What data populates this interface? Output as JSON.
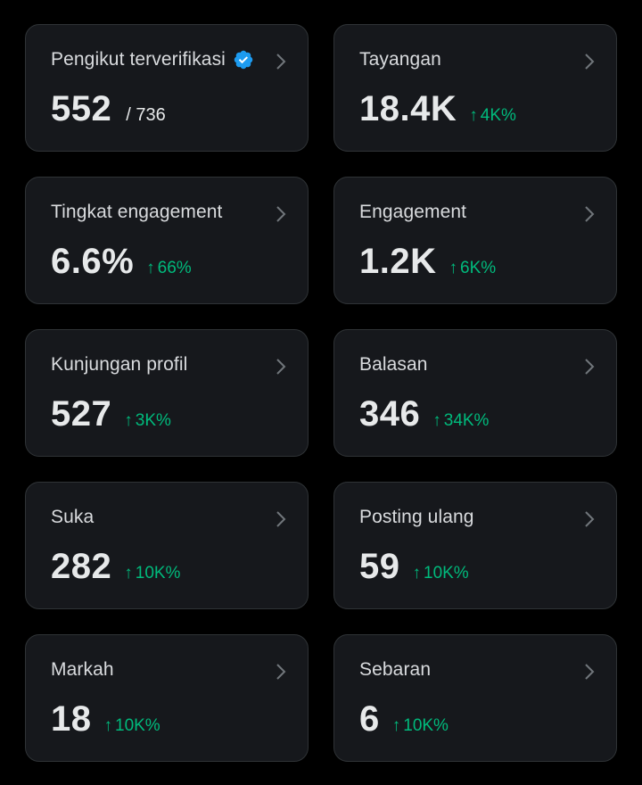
{
  "colors": {
    "background": "#000000",
    "card": "#16181c",
    "border": "#2f3336",
    "trend_up": "#00ba7c",
    "verified": "#1d9bf0"
  },
  "cards": [
    {
      "label": "Pengikut terverifikasi",
      "value": "552",
      "sub": "/ 736",
      "verified": true,
      "chevron_icon": "chevron-right-icon"
    },
    {
      "label": "Tayangan",
      "value": "18.4K",
      "trend": "4K%",
      "trend_icon": "arrow-up-icon",
      "chevron_icon": "chevron-right-icon"
    },
    {
      "label": "Tingkat engagement",
      "value": "6.6%",
      "trend": "66%",
      "trend_icon": "arrow-up-icon",
      "chevron_icon": "chevron-right-icon"
    },
    {
      "label": "Engagement",
      "value": "1.2K",
      "trend": "6K%",
      "trend_icon": "arrow-up-icon",
      "chevron_icon": "chevron-right-icon"
    },
    {
      "label": "Kunjungan profil",
      "value": "527",
      "trend": "3K%",
      "trend_icon": "arrow-up-icon",
      "chevron_icon": "chevron-right-icon"
    },
    {
      "label": "Balasan",
      "value": "346",
      "trend": "34K%",
      "trend_icon": "arrow-up-icon",
      "chevron_icon": "chevron-right-icon"
    },
    {
      "label": "Suka",
      "value": "282",
      "trend": "10K%",
      "trend_icon": "arrow-up-icon",
      "chevron_icon": "chevron-right-icon"
    },
    {
      "label": "Posting ulang",
      "value": "59",
      "trend": "10K%",
      "trend_icon": "arrow-up-icon",
      "chevron_icon": "chevron-right-icon"
    },
    {
      "label": "Markah",
      "value": "18",
      "trend": "10K%",
      "trend_icon": "arrow-up-icon",
      "chevron_icon": "chevron-right-icon"
    },
    {
      "label": "Sebaran",
      "value": "6",
      "trend": "10K%",
      "trend_icon": "arrow-up-icon",
      "chevron_icon": "chevron-right-icon"
    }
  ]
}
